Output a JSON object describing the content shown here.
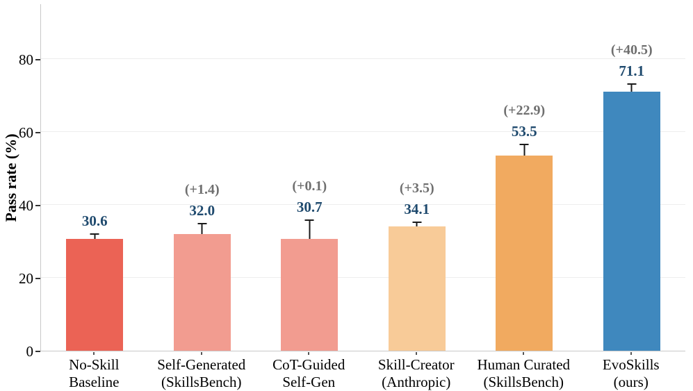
{
  "chart_data": {
    "type": "bar",
    "title": "",
    "xlabel": "",
    "ylabel": "Pass rate (%)",
    "ylim": [
      0,
      95
    ],
    "yticks": [
      0,
      20,
      40,
      60,
      80
    ],
    "grid": "horizontal-light",
    "legend": "none",
    "bars": [
      {
        "label_line1": "No-Skill",
        "label_line2": "Baseline",
        "value": 30.6,
        "value_text": "30.6",
        "error": 1.5,
        "delta": null,
        "color": "#eb6355"
      },
      {
        "label_line1": "Self-Generated",
        "label_line2": "(SkillsBench)",
        "value": 32.0,
        "value_text": "32.0",
        "error": 3.1,
        "delta": "(+1.4)",
        "color": "#f29c90"
      },
      {
        "label_line1": "CoT-Guided",
        "label_line2": "Self-Gen",
        "value": 30.7,
        "value_text": "30.7",
        "error": 5.3,
        "delta": "(+0.1)",
        "color": "#f29c90"
      },
      {
        "label_line1": "Skill-Creator",
        "label_line2": "(Anthropic)",
        "value": 34.1,
        "value_text": "34.1",
        "error": 1.4,
        "delta": "(+3.5)",
        "color": "#f8cb98"
      },
      {
        "label_line1": "Human Curated",
        "label_line2": "(SkillsBench)",
        "value": 53.5,
        "value_text": "53.5",
        "error": 3.3,
        "delta": "(+22.9)",
        "color": "#f1aa60"
      },
      {
        "label_line1": "EvoSkills",
        "label_line2": "(ours)",
        "value": 71.1,
        "value_text": "71.1",
        "error": 2.2,
        "delta": "(+40.5)",
        "color": "#3f88be"
      }
    ],
    "colors": {
      "value_label": "#1f4a6e",
      "delta_label": "#6f6f6f",
      "error_bar": "#1a1a1a",
      "gridline": "#ededed",
      "spine": "#c8c8c8",
      "tick_text": "#000000"
    }
  }
}
